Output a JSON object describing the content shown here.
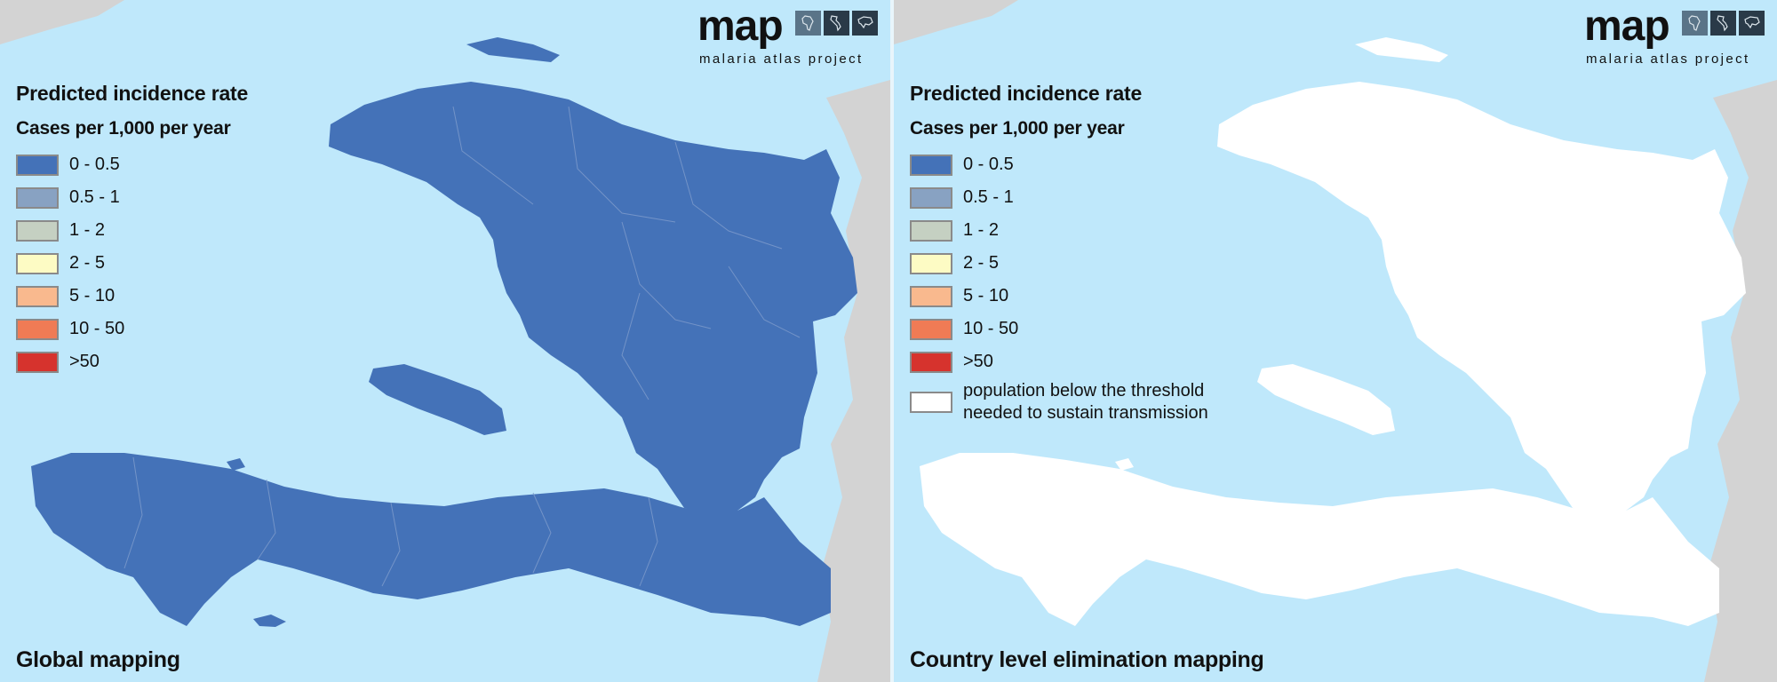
{
  "legend": {
    "title": "Predicted incidence rate",
    "subtitle": "Cases per 1,000 per year",
    "bins": [
      {
        "label": "0 - 0.5",
        "color": "#4472b8"
      },
      {
        "label": "0.5 - 1",
        "color": "#88a2c2"
      },
      {
        "label": "1 - 2",
        "color": "#c5d0c2"
      },
      {
        "label": "2 - 5",
        "color": "#fdfbc4"
      },
      {
        "label": "5 - 10",
        "color": "#f9b98e"
      },
      {
        "label": "10 - 50",
        "color": "#f07b55"
      },
      {
        "label": ">50",
        "color": "#d6332d"
      }
    ],
    "threshold": {
      "label": "population below the threshold needed to sustain transmission",
      "color": "#ffffff"
    }
  },
  "logo": {
    "wordmark": "map",
    "tagline": "malaria atlas project",
    "tile_icons": [
      "africa-map-icon",
      "americas-map-icon",
      "asia-map-icon"
    ]
  },
  "panels": {
    "left": {
      "caption": "Global mapping"
    },
    "right": {
      "caption": "Country level elimination mapping"
    }
  },
  "colors": {
    "sea": "#bfe8fb",
    "neighbor_land": "#d3d3d3",
    "land_base": "#4472b8",
    "borders": "#7f9ccc"
  }
}
